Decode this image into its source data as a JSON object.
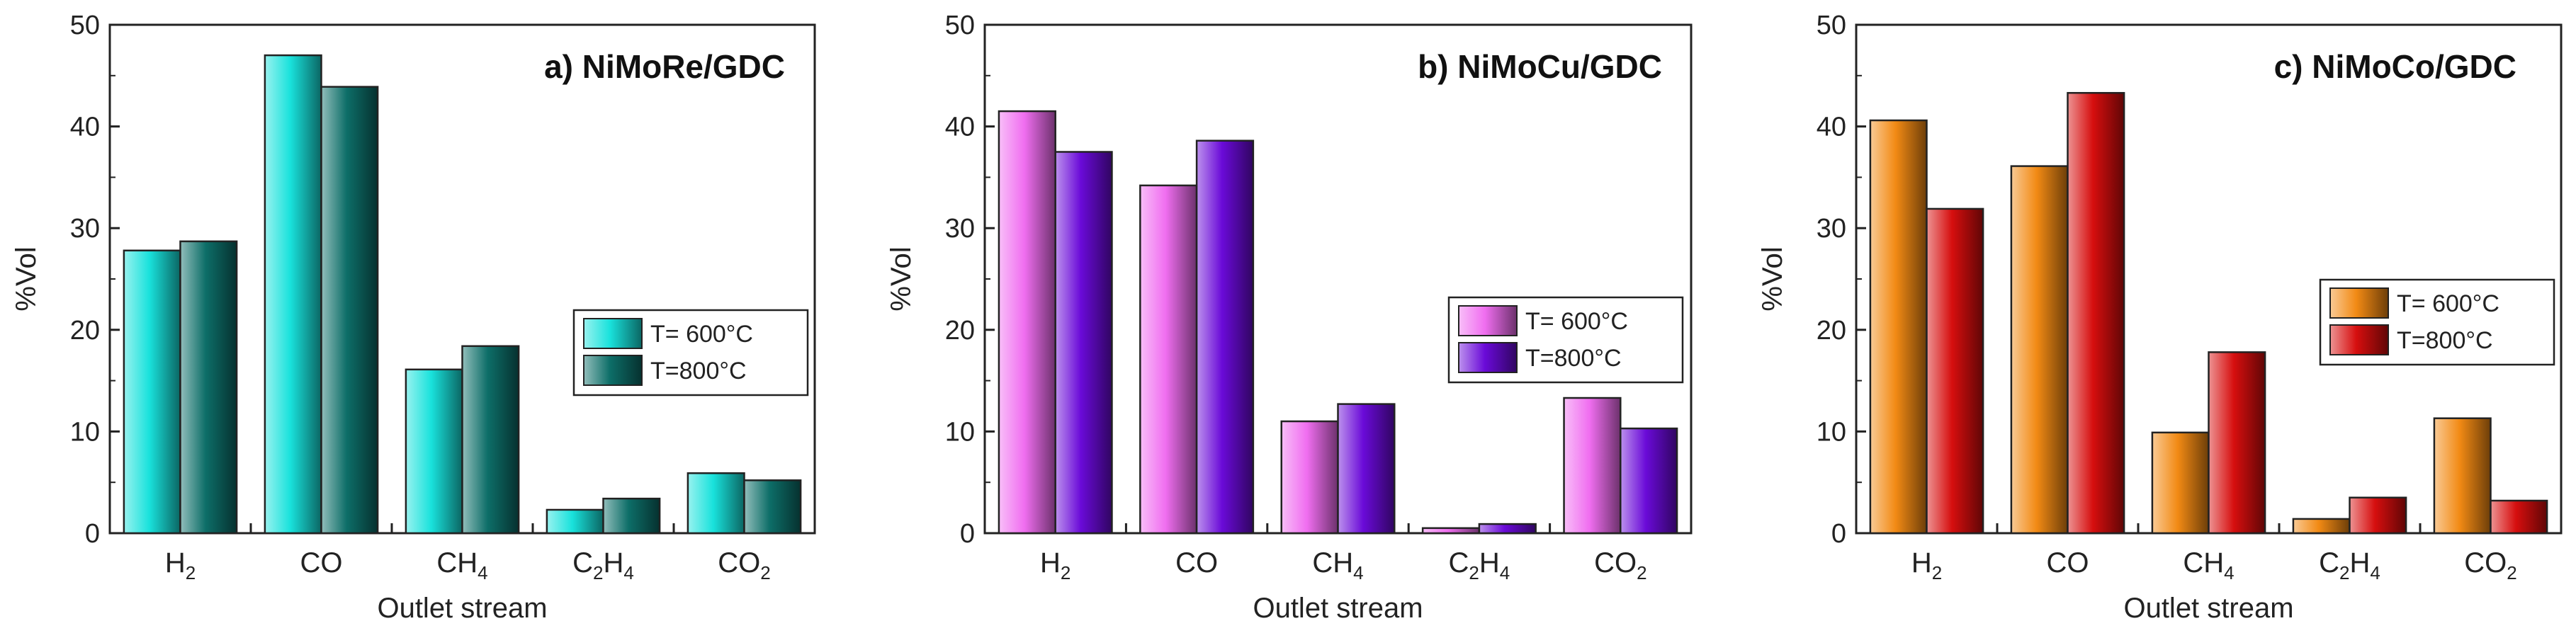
{
  "chart_data": [
    {
      "type": "bar",
      "title": "a) NiMoRe/GDC",
      "xlabel": "Outlet stream",
      "ylabel": "%Vol",
      "ylim": [
        0,
        50
      ],
      "yticks": [
        0,
        10,
        20,
        30,
        40,
        50
      ],
      "categories": [
        {
          "main": "H",
          "sub": "2"
        },
        {
          "main": "CO",
          "sub": ""
        },
        {
          "main": "CH",
          "sub": "4"
        },
        {
          "main": "C",
          "sub": "2",
          "main2": "H",
          "sub2": "4"
        },
        {
          "main": "CO",
          "sub": "2"
        }
      ],
      "series": [
        {
          "name": "T= 600°C",
          "color": "#19e2dc",
          "values": [
            27.8,
            47.0,
            16.1,
            2.3,
            5.9
          ]
        },
        {
          "name": "T=800°C",
          "color": "#0d6e68",
          "values": [
            28.7,
            43.9,
            18.4,
            3.4,
            5.2
          ]
        }
      ],
      "legend": "center-right"
    },
    {
      "type": "bar",
      "title": "b) NiMoCu/GDC",
      "xlabel": "Outlet stream",
      "ylabel": "%Vol",
      "ylim": [
        0,
        50
      ],
      "yticks": [
        0,
        10,
        20,
        30,
        40,
        50
      ],
      "categories": [
        {
          "main": "H",
          "sub": "2"
        },
        {
          "main": "CO",
          "sub": ""
        },
        {
          "main": "CH",
          "sub": "4"
        },
        {
          "main": "C",
          "sub": "2",
          "main2": "H",
          "sub2": "4"
        },
        {
          "main": "CO",
          "sub": "2"
        }
      ],
      "series": [
        {
          "name": "T= 600°C",
          "color": "#f06ef0",
          "values": [
            41.5,
            34.2,
            11.0,
            0.5,
            13.3
          ]
        },
        {
          "name": "T=800°C",
          "color": "#6a0ad8",
          "values": [
            37.5,
            38.6,
            12.7,
            0.9,
            10.3
          ]
        }
      ],
      "legend": "center-right"
    },
    {
      "type": "bar",
      "title": "c) NiMoCo/GDC",
      "xlabel": "Outlet stream",
      "ylabel": "%Vol",
      "ylim": [
        0,
        50
      ],
      "yticks": [
        0,
        10,
        20,
        30,
        40,
        50
      ],
      "categories": [
        {
          "main": "H",
          "sub": "2"
        },
        {
          "main": "CO",
          "sub": ""
        },
        {
          "main": "CH",
          "sub": "4"
        },
        {
          "main": "C",
          "sub": "2",
          "main2": "H",
          "sub2": "4"
        },
        {
          "main": "CO",
          "sub": "2"
        }
      ],
      "series": [
        {
          "name": "T= 600°C",
          "color": "#f28a14",
          "values": [
            40.6,
            36.1,
            9.9,
            1.4,
            11.3
          ]
        },
        {
          "name": "T=800°C",
          "color": "#d60e0e",
          "values": [
            31.9,
            43.3,
            17.8,
            3.5,
            3.2
          ]
        }
      ],
      "legend": "center-right"
    }
  ]
}
